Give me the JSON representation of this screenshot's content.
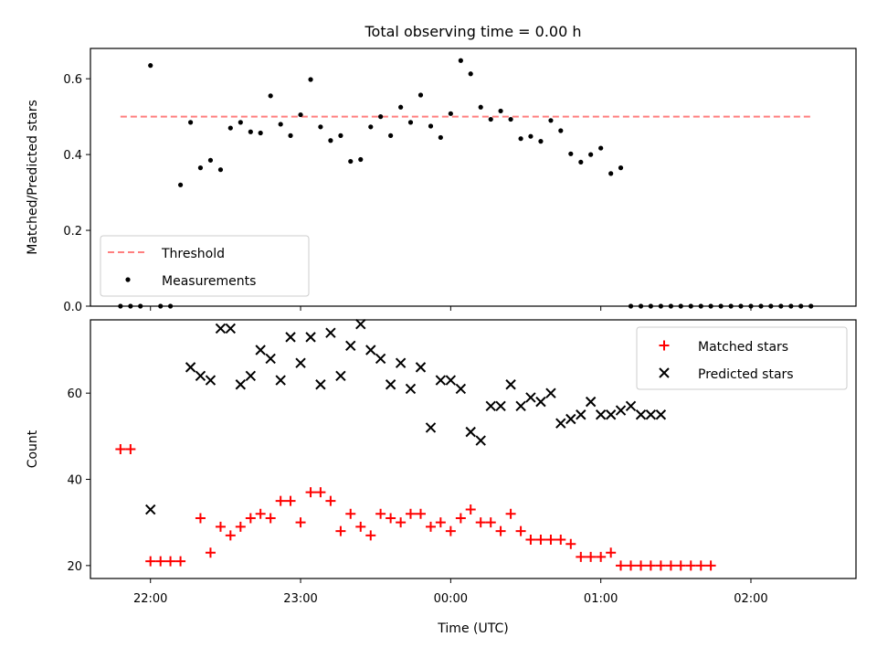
{
  "title": "Total observing time = 0.00 h",
  "chart_data": [
    {
      "type": "scatter",
      "ylabel": "Matched/Predicted stars",
      "xlabel": "",
      "ylim": [
        0,
        0.68
      ],
      "yticks": [
        0.0,
        0.2,
        0.4,
        0.6
      ],
      "ytick_labels": [
        "0.0",
        "0.2",
        "0.4",
        "0.6"
      ],
      "threshold": {
        "name": "Threshold",
        "value": 0.5,
        "x_start": -0.2,
        "x_end": 4.4,
        "color": "#ff7f7f",
        "style": "dashed"
      },
      "legend": {
        "placement": "lower-left",
        "entries": [
          "Threshold",
          "Measurements"
        ]
      },
      "series": [
        {
          "name": "Measurements",
          "color": "#000000",
          "marker": "dot",
          "x": [
            -0.2,
            -0.133,
            -0.067,
            0,
            0.067,
            0.133,
            0.2,
            0.267,
            0.333,
            0.4,
            0.467,
            0.533,
            0.6,
            0.667,
            0.733,
            0.8,
            0.867,
            0.933,
            1,
            1.067,
            1.133,
            1.2,
            1.267,
            1.333,
            1.4,
            1.467,
            1.533,
            1.6,
            1.667,
            1.733,
            1.8,
            1.867,
            1.933,
            2,
            2.067,
            2.133,
            2.2,
            2.267,
            2.333,
            2.4,
            2.467,
            2.533,
            2.6,
            2.667,
            2.733,
            2.8,
            2.867,
            2.933,
            3,
            3.067,
            3.133,
            3.2,
            3.267,
            3.333,
            3.4,
            3.467,
            3.533,
            3.6,
            3.667,
            3.733,
            3.8,
            3.867,
            3.933,
            4,
            4.067,
            4.133,
            4.2,
            4.267,
            4.333,
            4.4
          ],
          "y": [
            0,
            0,
            0,
            0.635,
            0,
            0,
            0.32,
            0.485,
            0.365,
            0.385,
            0.36,
            0.47,
            0.485,
            0.46,
            0.457,
            0.555,
            0.48,
            0.45,
            0.505,
            0.598,
            0.473,
            0.437,
            0.45,
            0.382,
            0.387,
            0.473,
            0.5,
            0.45,
            0.525,
            0.485,
            0.557,
            0.475,
            0.445,
            0.508,
            0.648,
            0.613,
            0.525,
            0.493,
            0.515,
            0.493,
            0.442,
            0.448,
            0.435,
            0.49,
            0.463,
            0.402,
            0.38,
            0.4,
            0.417,
            0.35,
            0.365,
            0,
            0,
            0,
            0,
            0,
            0,
            0,
            0,
            0,
            0,
            0,
            0,
            0,
            0,
            0,
            0,
            0,
            0,
            0
          ]
        }
      ]
    },
    {
      "type": "scatter",
      "ylabel": "Count",
      "xlabel": "Time (UTC)",
      "ylim": [
        17,
        77
      ],
      "yticks": [
        20,
        40,
        60
      ],
      "ytick_labels": [
        "20",
        "40",
        "60"
      ],
      "xlim": [
        -0.4,
        4.7
      ],
      "xticks": [
        0,
        1,
        2,
        3,
        4
      ],
      "xtick_labels": [
        "22:00",
        "23:00",
        "00:00",
        "01:00",
        "02:00"
      ],
      "legend": {
        "placement": "upper-right",
        "entries": [
          "Matched stars",
          "Predicted stars"
        ]
      },
      "series": [
        {
          "name": "Matched stars",
          "color": "#ff0000",
          "marker": "plus",
          "x": [
            -0.2,
            -0.133,
            0,
            0.067,
            0.133,
            0.2,
            0.333,
            0.4,
            0.467,
            0.533,
            0.6,
            0.667,
            0.733,
            0.8,
            0.867,
            0.933,
            1,
            1.067,
            1.133,
            1.2,
            1.267,
            1.333,
            1.4,
            1.467,
            1.533,
            1.6,
            1.667,
            1.733,
            1.8,
            1.867,
            1.933,
            2,
            2.067,
            2.133,
            2.2,
            2.267,
            2.333,
            2.4,
            2.467,
            2.533,
            2.6,
            2.667,
            2.733,
            2.8,
            2.867,
            2.933,
            3,
            3.067,
            3.133,
            3.2,
            3.267,
            3.333,
            3.4,
            3.467,
            3.533,
            3.6,
            3.667,
            3.733
          ],
          "y": [
            47,
            47,
            21,
            21,
            21,
            21,
            31,
            23,
            29,
            27,
            29,
            31,
            32,
            31,
            35,
            35,
            30,
            37,
            37,
            35,
            28,
            32,
            29,
            27,
            32,
            31,
            30,
            32,
            32,
            29,
            30,
            28,
            31,
            33,
            30,
            30,
            28,
            32,
            28,
            26,
            26,
            26,
            26,
            25,
            22,
            22,
            22,
            23,
            20,
            20,
            20,
            20,
            20,
            20,
            20,
            20,
            20,
            20
          ]
        },
        {
          "name": "Predicted stars",
          "color": "#000000",
          "marker": "x",
          "x": [
            0,
            0.267,
            0.333,
            0.4,
            0.467,
            0.533,
            0.6,
            0.667,
            0.733,
            0.8,
            0.867,
            0.933,
            1,
            1.067,
            1.133,
            1.2,
            1.267,
            1.333,
            1.4,
            1.467,
            1.533,
            1.6,
            1.667,
            1.733,
            1.8,
            1.867,
            1.933,
            2,
            2.067,
            2.133,
            2.2,
            2.267,
            2.333,
            2.4,
            2.467,
            2.533,
            2.6,
            2.667,
            2.733,
            2.8,
            2.867,
            2.933,
            3,
            3.067,
            3.133,
            3.2,
            3.267,
            3.333,
            3.4
          ],
          "y": [
            33,
            66,
            64,
            63,
            75,
            75,
            62,
            64,
            70,
            68,
            63,
            73,
            67,
            73,
            62,
            74,
            64,
            71,
            76,
            70,
            68,
            62,
            67,
            61,
            66,
            52,
            63,
            63,
            61,
            51,
            49,
            57,
            57,
            62,
            57,
            59,
            58,
            60,
            53,
            54,
            55,
            58,
            55,
            55,
            56,
            57,
            55,
            55,
            55
          ]
        }
      ]
    }
  ]
}
